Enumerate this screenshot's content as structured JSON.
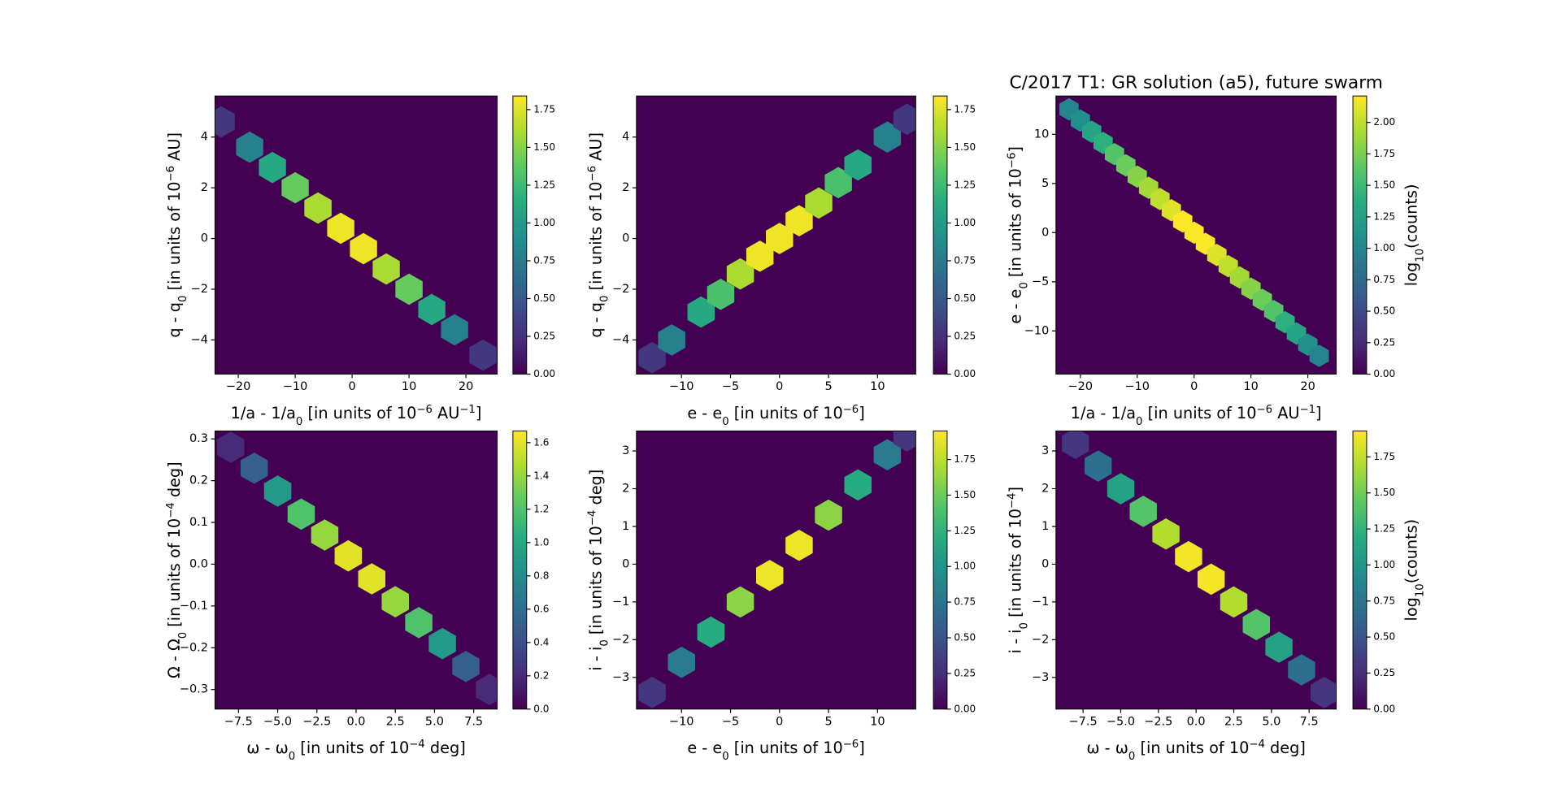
{
  "chart_data": [
    {
      "type": "hexbin",
      "colormap": "viridis",
      "xlabel": [
        "1/a - 1/a",
        {
          "text": "0",
          "shift": "sub"
        },
        " [in units of 10",
        {
          "text": "−6",
          "shift": "super"
        },
        " AU",
        {
          "text": "−1",
          "shift": "super"
        },
        "]"
      ],
      "ylabel": [
        "q - q",
        {
          "text": "0",
          "shift": "sub"
        },
        " [in units of 10",
        {
          "text": "−6",
          "shift": "super"
        },
        " AU]"
      ],
      "x": [
        -23,
        -18,
        -14,
        -10,
        -6,
        -2,
        2,
        6,
        10,
        14,
        18,
        23
      ],
      "y": [
        4.6,
        3.6,
        2.8,
        2.0,
        1.2,
        0.4,
        -0.4,
        -1.2,
        -2.0,
        -2.8,
        -3.6,
        -4.6
      ],
      "values": [
        0.3,
        0.8,
        1.1,
        1.4,
        1.6,
        1.8,
        1.8,
        1.6,
        1.4,
        1.1,
        0.8,
        0.3
      ],
      "xlim": [
        -24.1,
        25.5
      ],
      "ylim": [
        -5.35,
        5.62
      ],
      "clim": [
        0,
        1.84
      ],
      "xticks": [
        {
          "value": -20,
          "label": "−20"
        },
        {
          "value": -10,
          "label": "−10"
        },
        0,
        10,
        20
      ],
      "yticks": [
        {
          "value": -4,
          "label": "−4"
        },
        {
          "value": -2,
          "label": "−2"
        },
        0,
        2,
        4
      ],
      "cticks": [
        {
          "value": 0,
          "label": "0.00"
        },
        0.25,
        {
          "value": 0.5,
          "label": "0.50"
        },
        0.75,
        {
          "value": 1,
          "label": "1.00"
        },
        1.25,
        {
          "value": 1.5,
          "label": "1.50"
        },
        1.75
      ]
    },
    {
      "type": "hexbin",
      "colormap": "viridis",
      "xlabel": [
        "e - e",
        {
          "text": "0",
          "shift": "sub"
        },
        " [in units of 10",
        {
          "text": "−6",
          "shift": "super"
        },
        "]"
      ],
      "ylabel": [
        "q - q",
        {
          "text": "0",
          "shift": "sub"
        },
        " [in units of 10",
        {
          "text": "−6",
          "shift": "super"
        },
        " AU]"
      ],
      "x": [
        -13,
        -11,
        -8,
        -6,
        -4,
        -2,
        0,
        2,
        4,
        6,
        8,
        11,
        13
      ],
      "y": [
        -4.7,
        -4,
        -2.9,
        -2.2,
        -1.4,
        -0.7,
        0,
        0.7,
        1.4,
        2.2,
        2.9,
        4,
        4.7
      ],
      "values": [
        0.3,
        0.8,
        1.1,
        1.3,
        1.6,
        1.8,
        1.8,
        1.8,
        1.6,
        1.3,
        1.1,
        0.8,
        0.3
      ],
      "xlim": [
        -14.6,
        13.9
      ],
      "ylim": [
        -5.35,
        5.62
      ],
      "clim": [
        0,
        1.84
      ],
      "xticks": [
        {
          "value": -10,
          "label": "−10"
        },
        {
          "value": -5,
          "label": "−5"
        },
        0,
        5,
        10
      ],
      "yticks": [
        {
          "value": -4,
          "label": "−4"
        },
        {
          "value": -2,
          "label": "−2"
        },
        0,
        2,
        4
      ],
      "cticks": [
        {
          "value": 0,
          "label": "0.00"
        },
        0.25,
        {
          "value": 0.5,
          "label": "0.50"
        },
        0.75,
        {
          "value": 1,
          "label": "1.00"
        },
        1.25,
        {
          "value": 1.5,
          "label": "1.50"
        },
        1.75
      ]
    },
    {
      "type": "hexbin",
      "colormap": "viridis",
      "title": "C/2017 T1: GR solution (a5),  future swarm",
      "xlabel": [
        "1/a - 1/a",
        {
          "text": "0",
          "shift": "sub"
        },
        " [in units of 10",
        {
          "text": "−6",
          "shift": "super"
        },
        " AU",
        {
          "text": "−1",
          "shift": "super"
        },
        "]"
      ],
      "ylabel": [
        "e - e",
        {
          "text": "0",
          "shift": "sub"
        },
        " [in units of 10",
        {
          "text": "−6",
          "shift": "super"
        },
        "]"
      ],
      "colorbar_label": [
        "log",
        {
          "text": "10",
          "shift": "sub"
        },
        "(counts)"
      ],
      "x": [
        -22,
        -20,
        -18,
        -16,
        -14,
        -12,
        -10,
        -8,
        -6,
        -4,
        -2,
        0,
        2,
        4,
        6,
        8,
        10,
        12,
        14,
        16,
        18,
        20,
        22
      ],
      "y": [
        12.54,
        11.4,
        10.26,
        9.12,
        7.98,
        6.84,
        5.7,
        4.56,
        3.42,
        2.28,
        1.14,
        0,
        -1.14,
        -2.28,
        -3.42,
        -4.56,
        -5.7,
        -6.84,
        -7.98,
        -9.12,
        -10.26,
        -11.4,
        -12.54
      ],
      "values": [
        1.0,
        1.1,
        1.3,
        1.4,
        1.6,
        1.7,
        1.8,
        1.9,
        2.0,
        2.1,
        2.2,
        2.2,
        2.2,
        2.1,
        2.0,
        1.9,
        1.8,
        1.7,
        1.6,
        1.4,
        1.3,
        1.1,
        1.0
      ],
      "xlim": [
        -24.3,
        25.0
      ],
      "ylim": [
        -14.4,
        13.9
      ],
      "clim": [
        0,
        2.21
      ],
      "xticks": [
        {
          "value": -20,
          "label": "−20"
        },
        {
          "value": -10,
          "label": "−10"
        },
        0,
        10,
        20
      ],
      "yticks": [
        {
          "value": -10,
          "label": "−10"
        },
        {
          "value": -5,
          "label": "−5"
        },
        0,
        5,
        10
      ],
      "cticks": [
        {
          "value": 0,
          "label": "0.00"
        },
        0.25,
        {
          "value": 0.5,
          "label": "0.50"
        },
        0.75,
        {
          "value": 1,
          "label": "1.00"
        },
        1.25,
        {
          "value": 1.5,
          "label": "1.50"
        },
        1.75,
        {
          "value": 2,
          "label": "2.00"
        }
      ]
    },
    {
      "type": "hexbin",
      "colormap": "viridis",
      "xlabel": [
        "ω - ω",
        {
          "text": "0",
          "shift": "sub"
        },
        " [in units of 10",
        {
          "text": "−4",
          "shift": "super"
        },
        " deg]"
      ],
      "ylabel": [
        "Ω - Ω",
        {
          "text": "0",
          "shift": "sub"
        },
        " [in units of 10",
        {
          "text": "−4",
          "shift": "super"
        },
        " deg]"
      ],
      "x": [
        -8,
        -6.5,
        -5,
        -3.5,
        -2,
        -0.5,
        1,
        2.5,
        4,
        5.5,
        7,
        8.5
      ],
      "y": [
        0.28,
        0.23,
        0.175,
        0.12,
        0.07,
        0.02,
        -0.035,
        -0.09,
        -0.14,
        -0.19,
        -0.245,
        -0.3
      ],
      "values": [
        0.2,
        0.5,
        0.9,
        1.2,
        1.4,
        1.6,
        1.6,
        1.4,
        1.2,
        0.9,
        0.5,
        0.2
      ],
      "xlim": [
        -9.0,
        9.0
      ],
      "ylim": [
        -0.347,
        0.319
      ],
      "clim": [
        0,
        1.67
      ],
      "xticks": [
        {
          "value": -7.5,
          "label": "−7.5"
        },
        {
          "value": -5,
          "label": "−5.0"
        },
        {
          "value": -2.5,
          "label": "−2.5"
        },
        {
          "value": 0,
          "label": "0.0"
        },
        2.5,
        {
          "value": 5,
          "label": "5.0"
        },
        7.5
      ],
      "yticks": [
        {
          "value": -0.3,
          "label": "−0.3"
        },
        {
          "value": -0.2,
          "label": "−0.2"
        },
        {
          "value": -0.1,
          "label": "−0.1"
        },
        {
          "value": 0,
          "label": "0.0"
        },
        0.1,
        0.2,
        0.3
      ],
      "cticks": [
        {
          "value": 0,
          "label": "0.0"
        },
        0.2,
        0.4,
        0.6,
        0.8,
        {
          "value": 1,
          "label": "1.0"
        },
        1.2,
        1.4,
        1.6
      ]
    },
    {
      "type": "hexbin",
      "colormap": "viridis",
      "xlabel": [
        "e - e",
        {
          "text": "0",
          "shift": "sub"
        },
        " [in units of 10",
        {
          "text": "−6",
          "shift": "super"
        },
        "]"
      ],
      "ylabel": [
        "i - i",
        {
          "text": "0",
          "shift": "sub"
        },
        " [in units of 10",
        {
          "text": "−4",
          "shift": "super"
        },
        " deg]"
      ],
      "x": [
        -13,
        -10,
        -7,
        -4,
        -1,
        2,
        5,
        8,
        11,
        13
      ],
      "y": [
        -3.4,
        -2.6,
        -1.8,
        -1.0,
        -0.3,
        0.5,
        1.3,
        2.1,
        2.9,
        3.4
      ],
      "values": [
        0.3,
        0.8,
        1.2,
        1.6,
        1.9,
        1.9,
        1.6,
        1.2,
        0.8,
        0.3
      ],
      "xlim": [
        -14.6,
        13.9
      ],
      "ylim": [
        -3.84,
        3.53
      ],
      "clim": [
        0,
        1.95
      ],
      "xticks": [
        {
          "value": -10,
          "label": "−10"
        },
        {
          "value": -5,
          "label": "−5"
        },
        0,
        5,
        10
      ],
      "yticks": [
        {
          "value": -3,
          "label": "−3"
        },
        {
          "value": -2,
          "label": "−2"
        },
        {
          "value": -1,
          "label": "−1"
        },
        0,
        1,
        2,
        3
      ],
      "cticks": [
        {
          "value": 0,
          "label": "0.00"
        },
        0.25,
        {
          "value": 0.5,
          "label": "0.50"
        },
        0.75,
        {
          "value": 1,
          "label": "1.00"
        },
        1.25,
        {
          "value": 1.5,
          "label": "1.50"
        },
        1.75
      ]
    },
    {
      "type": "hexbin",
      "colormap": "viridis",
      "xlabel": [
        "ω - ω",
        {
          "text": "0",
          "shift": "sub"
        },
        " [in units of 10",
        {
          "text": "−4",
          "shift": "super"
        },
        " deg]"
      ],
      "ylabel": [
        "i - i",
        {
          "text": "0",
          "shift": "sub"
        },
        " [in units of 10",
        {
          "text": "−4",
          "shift": "super"
        },
        "]"
      ],
      "colorbar_label": [
        "log",
        {
          "text": "10",
          "shift": "sub"
        },
        "(counts)"
      ],
      "x": [
        -8,
        -6.5,
        -5,
        -3.5,
        -2,
        -0.5,
        1,
        2.5,
        4,
        5.5,
        7,
        8.5
      ],
      "y": [
        3.2,
        2.6,
        2.0,
        1.4,
        0.8,
        0.2,
        -0.4,
        -1.0,
        -1.6,
        -2.2,
        -2.8,
        -3.4
      ],
      "values": [
        0.3,
        0.7,
        1.1,
        1.4,
        1.7,
        1.9,
        1.9,
        1.7,
        1.4,
        1.1,
        0.7,
        0.3
      ],
      "xlim": [
        -9.3,
        9.3
      ],
      "ylim": [
        -3.84,
        3.53
      ],
      "clim": [
        0,
        1.93
      ],
      "xticks": [
        {
          "value": -7.5,
          "label": "−7.5"
        },
        {
          "value": -5,
          "label": "−5.0"
        },
        {
          "value": -2.5,
          "label": "−2.5"
        },
        {
          "value": 0,
          "label": "0.0"
        },
        2.5,
        {
          "value": 5,
          "label": "5.0"
        },
        7.5
      ],
      "yticks": [
        {
          "value": -3,
          "label": "−3"
        },
        {
          "value": -2,
          "label": "−2"
        },
        {
          "value": -1,
          "label": "−1"
        },
        0,
        1,
        2,
        3
      ],
      "cticks": [
        {
          "value": 0,
          "label": "0.00"
        },
        0.25,
        {
          "value": 0.5,
          "label": "0.50"
        },
        0.75,
        {
          "value": 1,
          "label": "1.00"
        },
        1.25,
        {
          "value": 1.5,
          "label": "1.50"
        },
        1.75
      ]
    }
  ]
}
